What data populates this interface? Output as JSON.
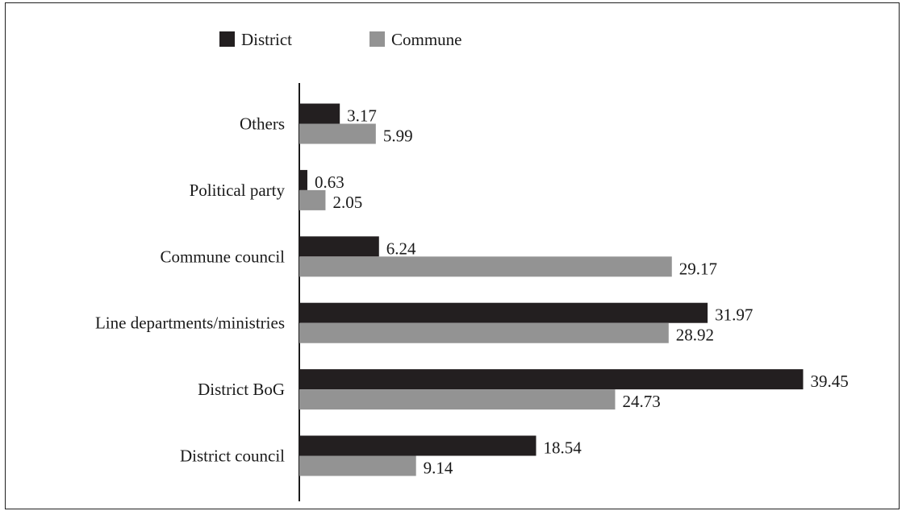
{
  "chart_data": {
    "type": "bar",
    "orientation": "horizontal",
    "categories": [
      "Others",
      "Political party",
      "Commune council",
      "Line departments/ministries",
      "District BoG",
      "District council"
    ],
    "series": [
      {
        "name": "District",
        "color": "#231f20",
        "values": [
          3.17,
          0.63,
          6.24,
          31.97,
          39.45,
          18.54
        ]
      },
      {
        "name": "Commune",
        "color": "#939393",
        "values": [
          5.99,
          2.05,
          29.17,
          28.92,
          24.73,
          9.14
        ]
      }
    ],
    "xlim": [
      0,
      40
    ],
    "value_labels": true,
    "legend_position": "top",
    "grid": false
  }
}
